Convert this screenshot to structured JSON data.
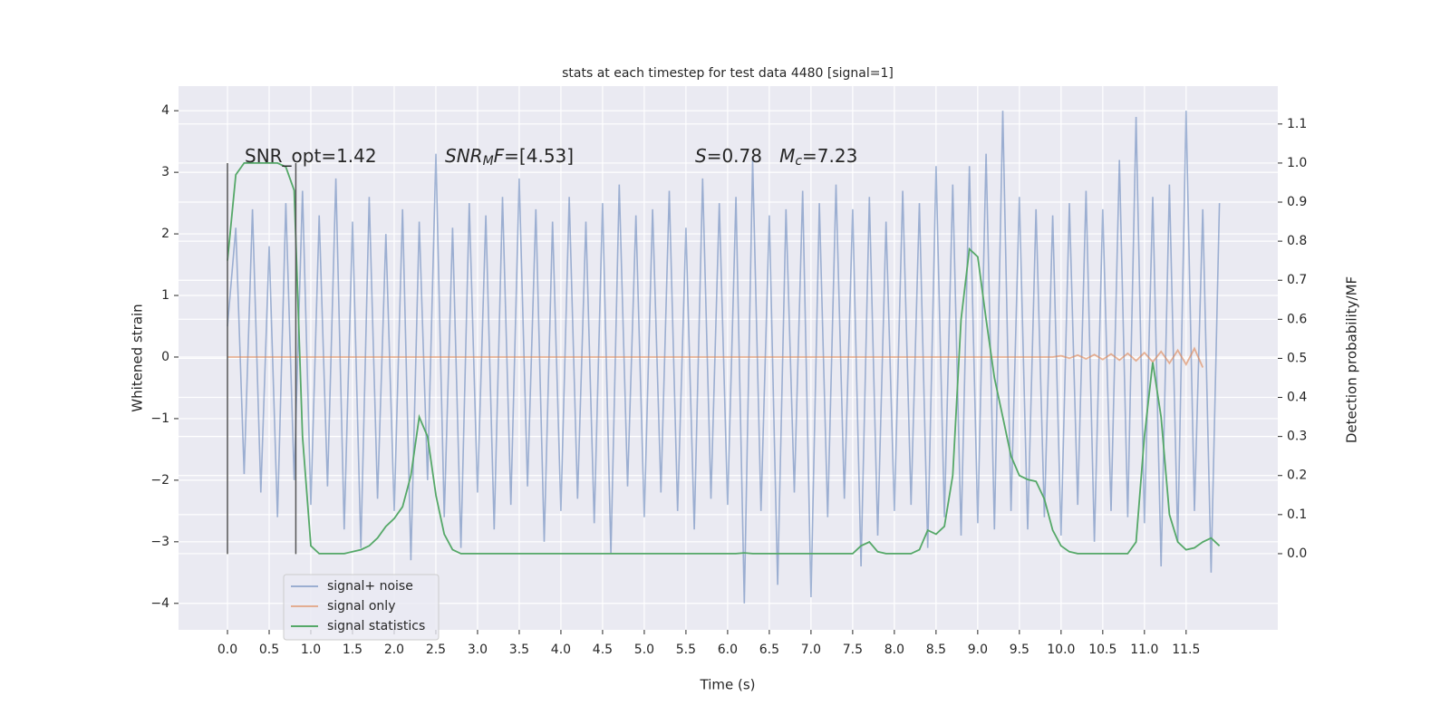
{
  "chart_data": {
    "type": "line",
    "title": "stats at each timestep for test data 4480 [signal=1]",
    "xlabel": "Time (s)",
    "ylabel": "Whitened strain",
    "y2label": "Detection probability/MF",
    "x": [
      0,
      0.1,
      0.2,
      0.3,
      0.4,
      0.5,
      0.6,
      0.7,
      0.8,
      0.9,
      1,
      1.1,
      1.2,
      1.3,
      1.4,
      1.5,
      1.6,
      1.7,
      1.8,
      1.9,
      2,
      2.1,
      2.2,
      2.3,
      2.4,
      2.5,
      2.6,
      2.7,
      2.8,
      2.9,
      3,
      3.1,
      3.2,
      3.3,
      3.4,
      3.5,
      3.6,
      3.7,
      3.8,
      3.9,
      4,
      4.1,
      4.2,
      4.3,
      4.4,
      4.5,
      4.6,
      4.7,
      4.8,
      4.9,
      5,
      5.1,
      5.2,
      5.3,
      5.4,
      5.5,
      5.6,
      5.7,
      5.8,
      5.9,
      6,
      6.1,
      6.2,
      6.3,
      6.4,
      6.5,
      6.6,
      6.7,
      6.8,
      6.9,
      7,
      7.1,
      7.2,
      7.3,
      7.4,
      7.5,
      7.6,
      7.7,
      7.8,
      7.9,
      8,
      8.1,
      8.2,
      8.3,
      8.4,
      8.5,
      8.6,
      8.7,
      8.8,
      8.9,
      9,
      9.1,
      9.2,
      9.3,
      9.4,
      9.5,
      9.6,
      9.7,
      9.8,
      9.9,
      10,
      10.1,
      10.2,
      10.3,
      10.4,
      10.5,
      10.6,
      10.7,
      10.8,
      10.9,
      11,
      11.1,
      11.2,
      11.3,
      11.4,
      11.5,
      11.6,
      11.7,
      11.8,
      11.9
    ],
    "series": [
      {
        "name": "signal+ noise",
        "color": "#4c72b0",
        "opacity": 0.5,
        "values": [
          0.5,
          2.1,
          -1.9,
          2.4,
          -2.2,
          1.8,
          -2.6,
          2.5,
          -2.0,
          2.7,
          -2.4,
          2.3,
          -2.1,
          2.9,
          -2.8,
          2.2,
          -3.1,
          2.6,
          -2.3,
          2.0,
          -2.5,
          2.4,
          -3.3,
          2.2,
          -2.0,
          3.3,
          -2.6,
          2.1,
          -3.1,
          2.5,
          -2.2,
          2.3,
          -2.8,
          2.6,
          -2.4,
          2.9,
          -2.1,
          2.4,
          -3.0,
          2.2,
          -2.5,
          2.6,
          -2.3,
          2.2,
          -2.7,
          2.5,
          -3.2,
          2.8,
          -2.1,
          2.3,
          -2.6,
          2.4,
          -2.2,
          2.7,
          -2.5,
          2.1,
          -2.8,
          2.9,
          -2.3,
          2.5,
          -2.4,
          2.6,
          -4.0,
          3.2,
          -2.5,
          2.3,
          -3.7,
          2.4,
          -2.2,
          2.7,
          -3.9,
          2.5,
          -2.6,
          2.8,
          -2.3,
          2.4,
          -3.4,
          2.6,
          -2.9,
          2.2,
          -2.5,
          2.7,
          -2.4,
          2.5,
          -3.1,
          3.1,
          -2.6,
          2.8,
          -2.9,
          3.1,
          -2.7,
          3.3,
          -2.8,
          4.0,
          -2.5,
          2.6,
          -2.8,
          2.4,
          -2.6,
          2.3,
          -2.9,
          2.5,
          -2.4,
          2.7,
          -3.0,
          2.4,
          -2.5,
          3.2,
          -2.6,
          3.9,
          -2.7,
          2.6,
          -3.4,
          2.8,
          -3.0,
          4.0,
          -2.5,
          2.4,
          -3.5,
          2.5
        ]
      },
      {
        "name": "signal only",
        "color": "#dd8452",
        "opacity": 0.6,
        "values": [
          0,
          0,
          0,
          0,
          0,
          0,
          0,
          0,
          0,
          0,
          0,
          0,
          0,
          0,
          0,
          0,
          0,
          0,
          0,
          0,
          0,
          0,
          0,
          0,
          0,
          0,
          0,
          0,
          0,
          0,
          0,
          0,
          0,
          0,
          0,
          0,
          0,
          0,
          0,
          0,
          0,
          0,
          0,
          0,
          0,
          0,
          0,
          0,
          0,
          0,
          0,
          0,
          0,
          0,
          0,
          0,
          0,
          0,
          0,
          0,
          0,
          0,
          0,
          0,
          0,
          0,
          0,
          0,
          0,
          0,
          0,
          0,
          0,
          0,
          0,
          0,
          0,
          0,
          0,
          0,
          0,
          0,
          0,
          0,
          0,
          0,
          0,
          0,
          0,
          0,
          0,
          0,
          0,
          0,
          0,
          0,
          0,
          0,
          0,
          0,
          0.02,
          -0.02,
          0.03,
          -0.03,
          0.04,
          -0.04,
          0.05,
          -0.05,
          0.06,
          -0.06,
          0.07,
          -0.08,
          0.09,
          -0.1,
          0.11,
          -0.12,
          0.14,
          -0.17,
          null,
          null
        ]
      },
      {
        "name": "signal statistics",
        "color": "#55a868",
        "opacity": 1,
        "axis": "y2",
        "values": [
          0.75,
          0.97,
          1.0,
          1.0,
          1.0,
          1.0,
          1.0,
          0.99,
          0.93,
          0.3,
          0.02,
          0.0,
          0.0,
          0.0,
          0.0,
          0.005,
          0.01,
          0.02,
          0.04,
          0.07,
          0.09,
          0.12,
          0.2,
          0.35,
          0.3,
          0.15,
          0.05,
          0.01,
          0.0,
          0.0,
          0.0,
          0.0,
          0.0,
          0.0,
          0.0,
          0.0,
          0.0,
          0.0,
          0.0,
          0.0,
          0.0,
          0.0,
          0.0,
          0.0,
          0.0,
          0.0,
          0.0,
          0.0,
          0.0,
          0.0,
          0.0,
          0.0,
          0.0,
          0.0,
          0.0,
          0.0,
          0.0,
          0.0,
          0.0,
          0.0,
          0.0,
          0.0,
          0.002,
          0.0,
          0.0,
          0.0,
          0.0,
          0.0,
          0.0,
          0.0,
          0.0,
          0.0,
          0.0,
          0.0,
          0.0,
          0.0,
          0.02,
          0.03,
          0.005,
          0.0,
          0.0,
          0.0,
          0.0,
          0.01,
          0.06,
          0.05,
          0.07,
          0.2,
          0.6,
          0.78,
          0.76,
          0.6,
          0.45,
          0.35,
          0.25,
          0.2,
          0.19,
          0.185,
          0.14,
          0.06,
          0.02,
          0.005,
          0.0,
          0.0,
          0.0,
          0.0,
          0.0,
          0.0,
          0.0,
          0.03,
          0.3,
          0.49,
          0.35,
          0.1,
          0.03,
          0.01,
          0.015,
          0.03,
          0.04,
          0.02
        ]
      }
    ],
    "vlines": [
      0,
      0.82
    ],
    "vline_range": [
      -3.2,
      3.15
    ],
    "annotations": [
      [
        {
          "text": "SNR_opt=1.42"
        }
      ],
      [
        {
          "text": "SNR",
          "italic": true
        },
        {
          "text": "M",
          "italic": true,
          "sub": true
        },
        {
          "text": "F",
          "italic": true
        },
        {
          "text": "=[4.53]"
        }
      ],
      [
        {
          "text": "S",
          "italic": true
        },
        {
          "text": "=0.78   "
        },
        {
          "text": "M",
          "italic": true
        },
        {
          "text": "c",
          "italic": true,
          "sub": true
        },
        {
          "text": "=7.23"
        }
      ]
    ],
    "xlim": [
      -0.587,
      12.6
    ],
    "ylim": [
      -4.43,
      4.4
    ],
    "y2lim": [
      -0.195,
      1.197
    ],
    "xticks": [
      {
        "value": 0,
        "label": "0.0"
      },
      {
        "value": 0.5,
        "label": "0.5"
      },
      {
        "value": 1,
        "label": "1.0"
      },
      {
        "value": 1.5,
        "label": "1.5"
      },
      {
        "value": 2,
        "label": "2.0"
      },
      {
        "value": 2.5,
        "label": "2.5"
      },
      {
        "value": 3,
        "label": "3.0"
      },
      {
        "value": 3.5,
        "label": "3.5"
      },
      {
        "value": 4,
        "label": "4.0"
      },
      {
        "value": 4.5,
        "label": "4.5"
      },
      {
        "value": 5,
        "label": "5.0"
      },
      {
        "value": 5.5,
        "label": "5.5"
      },
      {
        "value": 6,
        "label": "6.0"
      },
      {
        "value": 6.5,
        "label": "6.5"
      },
      {
        "value": 7,
        "label": "7.0"
      },
      {
        "value": 7.5,
        "label": "7.5"
      },
      {
        "value": 8,
        "label": "8.0"
      },
      {
        "value": 8.5,
        "label": "8.5"
      },
      {
        "value": 9,
        "label": "9.0"
      },
      {
        "value": 9.5,
        "label": "9.5"
      },
      {
        "value": 10,
        "label": "10.0"
      },
      {
        "value": 10.5,
        "label": "10.5"
      },
      {
        "value": 11,
        "label": "11.0"
      },
      {
        "value": 11.5,
        "label": "11.5"
      }
    ],
    "yticks": [
      {
        "value": -4,
        "label": "−4"
      },
      {
        "value": -3,
        "label": "−3"
      },
      {
        "value": -2,
        "label": "−2"
      },
      {
        "value": -1,
        "label": "−1"
      },
      0,
      1,
      2,
      3,
      4
    ],
    "y2ticks": [
      {
        "value": 0,
        "label": "0.0"
      },
      {
        "value": 0.1,
        "label": "0.1"
      },
      {
        "value": 0.2,
        "label": "0.2"
      },
      {
        "value": 0.3,
        "label": "0.3"
      },
      {
        "value": 0.4,
        "label": "0.4"
      },
      {
        "value": 0.5,
        "label": "0.5"
      },
      {
        "value": 0.6,
        "label": "0.6"
      },
      {
        "value": 0.7,
        "label": "0.7"
      },
      {
        "value": 0.8,
        "label": "0.8"
      },
      {
        "value": 0.9,
        "label": "0.9"
      },
      {
        "value": 1.0,
        "label": "1.0"
      },
      {
        "value": 1.1,
        "label": "1.1"
      }
    ],
    "grid": true,
    "legend": "lower left"
  }
}
